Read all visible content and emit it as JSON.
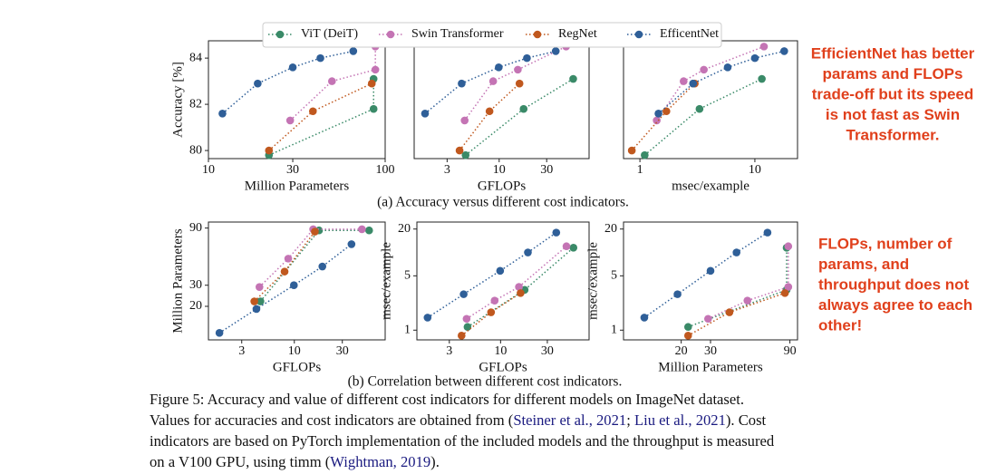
{
  "legend": {
    "entries": [
      {
        "name": "ViT (DeiT)",
        "color": "#3a8a68"
      },
      {
        "name": "Swin Transformer",
        "color": "#c474b4"
      },
      {
        "name": "RegNet",
        "color": "#c0581e"
      },
      {
        "name": "EfficentNet",
        "color": "#2f5f98"
      }
    ]
  },
  "chart_data": [
    {
      "type": "line",
      "x_label": "Million Parameters",
      "y_label": "Accuracy [%]",
      "log_x": true,
      "log_y": false,
      "xlim": [
        10,
        100
      ],
      "ylim": [
        79.65,
        84.75
      ],
      "xticks": [
        10,
        30,
        100
      ],
      "yticks": [
        80,
        82,
        84
      ],
      "series": [
        {
          "x": [
            22,
            86,
            86
          ],
          "values": [
            79.8,
            81.8,
            83.1
          ]
        },
        {
          "x": [
            29,
            50,
            88,
            88
          ],
          "values": [
            81.3,
            83.0,
            83.5,
            84.5
          ]
        },
        {
          "x": [
            22,
            39,
            84
          ],
          "values": [
            80.0,
            81.7,
            82.9
          ]
        },
        {
          "x": [
            12,
            19,
            30,
            43,
            66
          ],
          "values": [
            81.6,
            82.9,
            83.6,
            84.0,
            84.3
          ]
        }
      ]
    },
    {
      "type": "line",
      "x_label": "GFLOPs",
      "log_x": true,
      "log_y": false,
      "xlim": [
        1.4,
        80
      ],
      "ylim": [
        79.65,
        84.75
      ],
      "xticks": [
        3,
        10,
        30
      ],
      "series": [
        {
          "x": [
            4.6,
            17.6,
            55.4
          ],
          "values": [
            79.8,
            81.8,
            83.1
          ]
        },
        {
          "x": [
            4.5,
            8.7,
            15.4,
            47
          ],
          "values": [
            81.3,
            83.0,
            83.5,
            84.5
          ]
        },
        {
          "x": [
            4.0,
            8.0,
            16.0
          ],
          "values": [
            80.0,
            81.7,
            82.9
          ]
        },
        {
          "x": [
            1.8,
            4.2,
            9.9,
            19,
            37
          ],
          "values": [
            81.6,
            82.9,
            83.6,
            84.0,
            84.3
          ]
        }
      ]
    },
    {
      "type": "line",
      "x_label": "msec/example",
      "log_x": true,
      "log_y": false,
      "xlim": [
        0.72,
        23.5
      ],
      "ylim": [
        79.65,
        84.75
      ],
      "xticks": [
        1,
        10
      ],
      "series": [
        {
          "x": [
            1.1,
            3.3,
            11.5
          ],
          "values": [
            79.8,
            81.8,
            83.1
          ]
        },
        {
          "x": [
            1.4,
            2.4,
            3.6,
            12
          ],
          "values": [
            81.3,
            83.0,
            83.5,
            84.5
          ]
        },
        {
          "x": [
            0.85,
            1.7,
            3.0
          ],
          "values": [
            80.0,
            81.7,
            82.9
          ]
        },
        {
          "x": [
            1.45,
            2.9,
            5.8,
            10,
            18
          ],
          "values": [
            81.6,
            82.9,
            83.6,
            84.0,
            84.3
          ]
        }
      ]
    },
    {
      "type": "line",
      "x_label": "GFLOPs",
      "y_label": "Million Parameters",
      "log_x": true,
      "log_y": true,
      "xlim": [
        1.4,
        80
      ],
      "ylim": [
        10.5,
        101
      ],
      "xticks": [
        3,
        10,
        30
      ],
      "yticks": [
        20,
        30,
        90
      ],
      "series": [
        {
          "x": [
            4.6,
            17.6,
            55.4
          ],
          "values": [
            22,
            86,
            86
          ]
        },
        {
          "x": [
            4.5,
            8.7,
            15.4,
            47
          ],
          "values": [
            29,
            50,
            88,
            88
          ]
        },
        {
          "x": [
            4.0,
            8.0,
            16.0
          ],
          "values": [
            22,
            39,
            84
          ]
        },
        {
          "x": [
            1.8,
            4.2,
            9.9,
            19,
            37
          ],
          "values": [
            12,
            19,
            30,
            43,
            66
          ]
        }
      ]
    },
    {
      "type": "line",
      "x_label": "GFLOPs",
      "y_label": "msec/example",
      "log_x": true,
      "log_y": true,
      "xlim": [
        1.4,
        80
      ],
      "ylim": [
        0.75,
        24.6
      ],
      "xticks": [
        3,
        10,
        30
      ],
      "yticks": [
        1,
        5,
        20
      ],
      "series": [
        {
          "x": [
            4.6,
            17.6,
            55.4
          ],
          "values": [
            1.1,
            3.3,
            11.5
          ]
        },
        {
          "x": [
            4.5,
            8.7,
            15.4,
            47
          ],
          "values": [
            1.4,
            2.4,
            3.6,
            12
          ]
        },
        {
          "x": [
            4.0,
            8.0,
            16.0
          ],
          "values": [
            0.85,
            1.7,
            3.0
          ]
        },
        {
          "x": [
            1.8,
            4.2,
            9.9,
            19,
            37
          ],
          "values": [
            1.45,
            2.9,
            5.8,
            10,
            18
          ]
        }
      ]
    },
    {
      "type": "line",
      "x_label": "Million Parameters",
      "y_label": "msec/example",
      "log_x": true,
      "log_y": true,
      "xlim": [
        9,
        100
      ],
      "ylim": [
        0.75,
        24.6
      ],
      "xticks": [
        20,
        30,
        90
      ],
      "yticks": [
        1,
        5,
        20
      ],
      "series": [
        {
          "x": [
            22,
            86,
            86
          ],
          "values": [
            1.1,
            3.3,
            11.5
          ]
        },
        {
          "x": [
            29,
            50,
            88,
            88
          ],
          "values": [
            1.4,
            2.4,
            3.6,
            12
          ]
        },
        {
          "x": [
            22,
            39,
            84
          ],
          "values": [
            0.85,
            1.7,
            3.0
          ]
        },
        {
          "x": [
            12,
            19,
            30,
            43,
            66
          ],
          "values": [
            1.45,
            2.9,
            5.8,
            10,
            18
          ]
        }
      ]
    }
  ],
  "subcaptions": [
    "(a) Accuracy versus different cost indicators.",
    "(b) Correlation between different cost indicators."
  ],
  "annotations": [
    {
      "color": "#e0401c",
      "lines": [
        "EfficientNet has better",
        "params and FLOPs",
        "trade-off but its speed",
        "is not fast as Swin",
        "Transformer."
      ]
    },
    {
      "color": "#e0401c",
      "lines": [
        "FLOPs, number of",
        "params, and",
        "throughput does not",
        "always agree to each",
        "other!"
      ]
    }
  ],
  "caption": {
    "cite_color": "#1a1a80",
    "lines": [
      [
        {
          "text": "Figure 5: Accuracy and value of different cost indicators for different models on ImageNet dataset."
        }
      ],
      [
        {
          "text": "Values for accuracies and cost indicators are obtained from ("
        },
        {
          "text": "Steiner et al., 2021",
          "cite": true
        },
        {
          "text": "; "
        },
        {
          "text": "Liu et al., 2021",
          "cite": true
        },
        {
          "text": "). Cost"
        }
      ],
      [
        {
          "text": "indicators are based on PyTorch implementation of the included models and the throughput is measured"
        }
      ],
      [
        {
          "text": "on a V100 GPU, using timm ("
        },
        {
          "text": "Wightman, 2019",
          "cite": true
        },
        {
          "text": ")."
        }
      ]
    ]
  }
}
